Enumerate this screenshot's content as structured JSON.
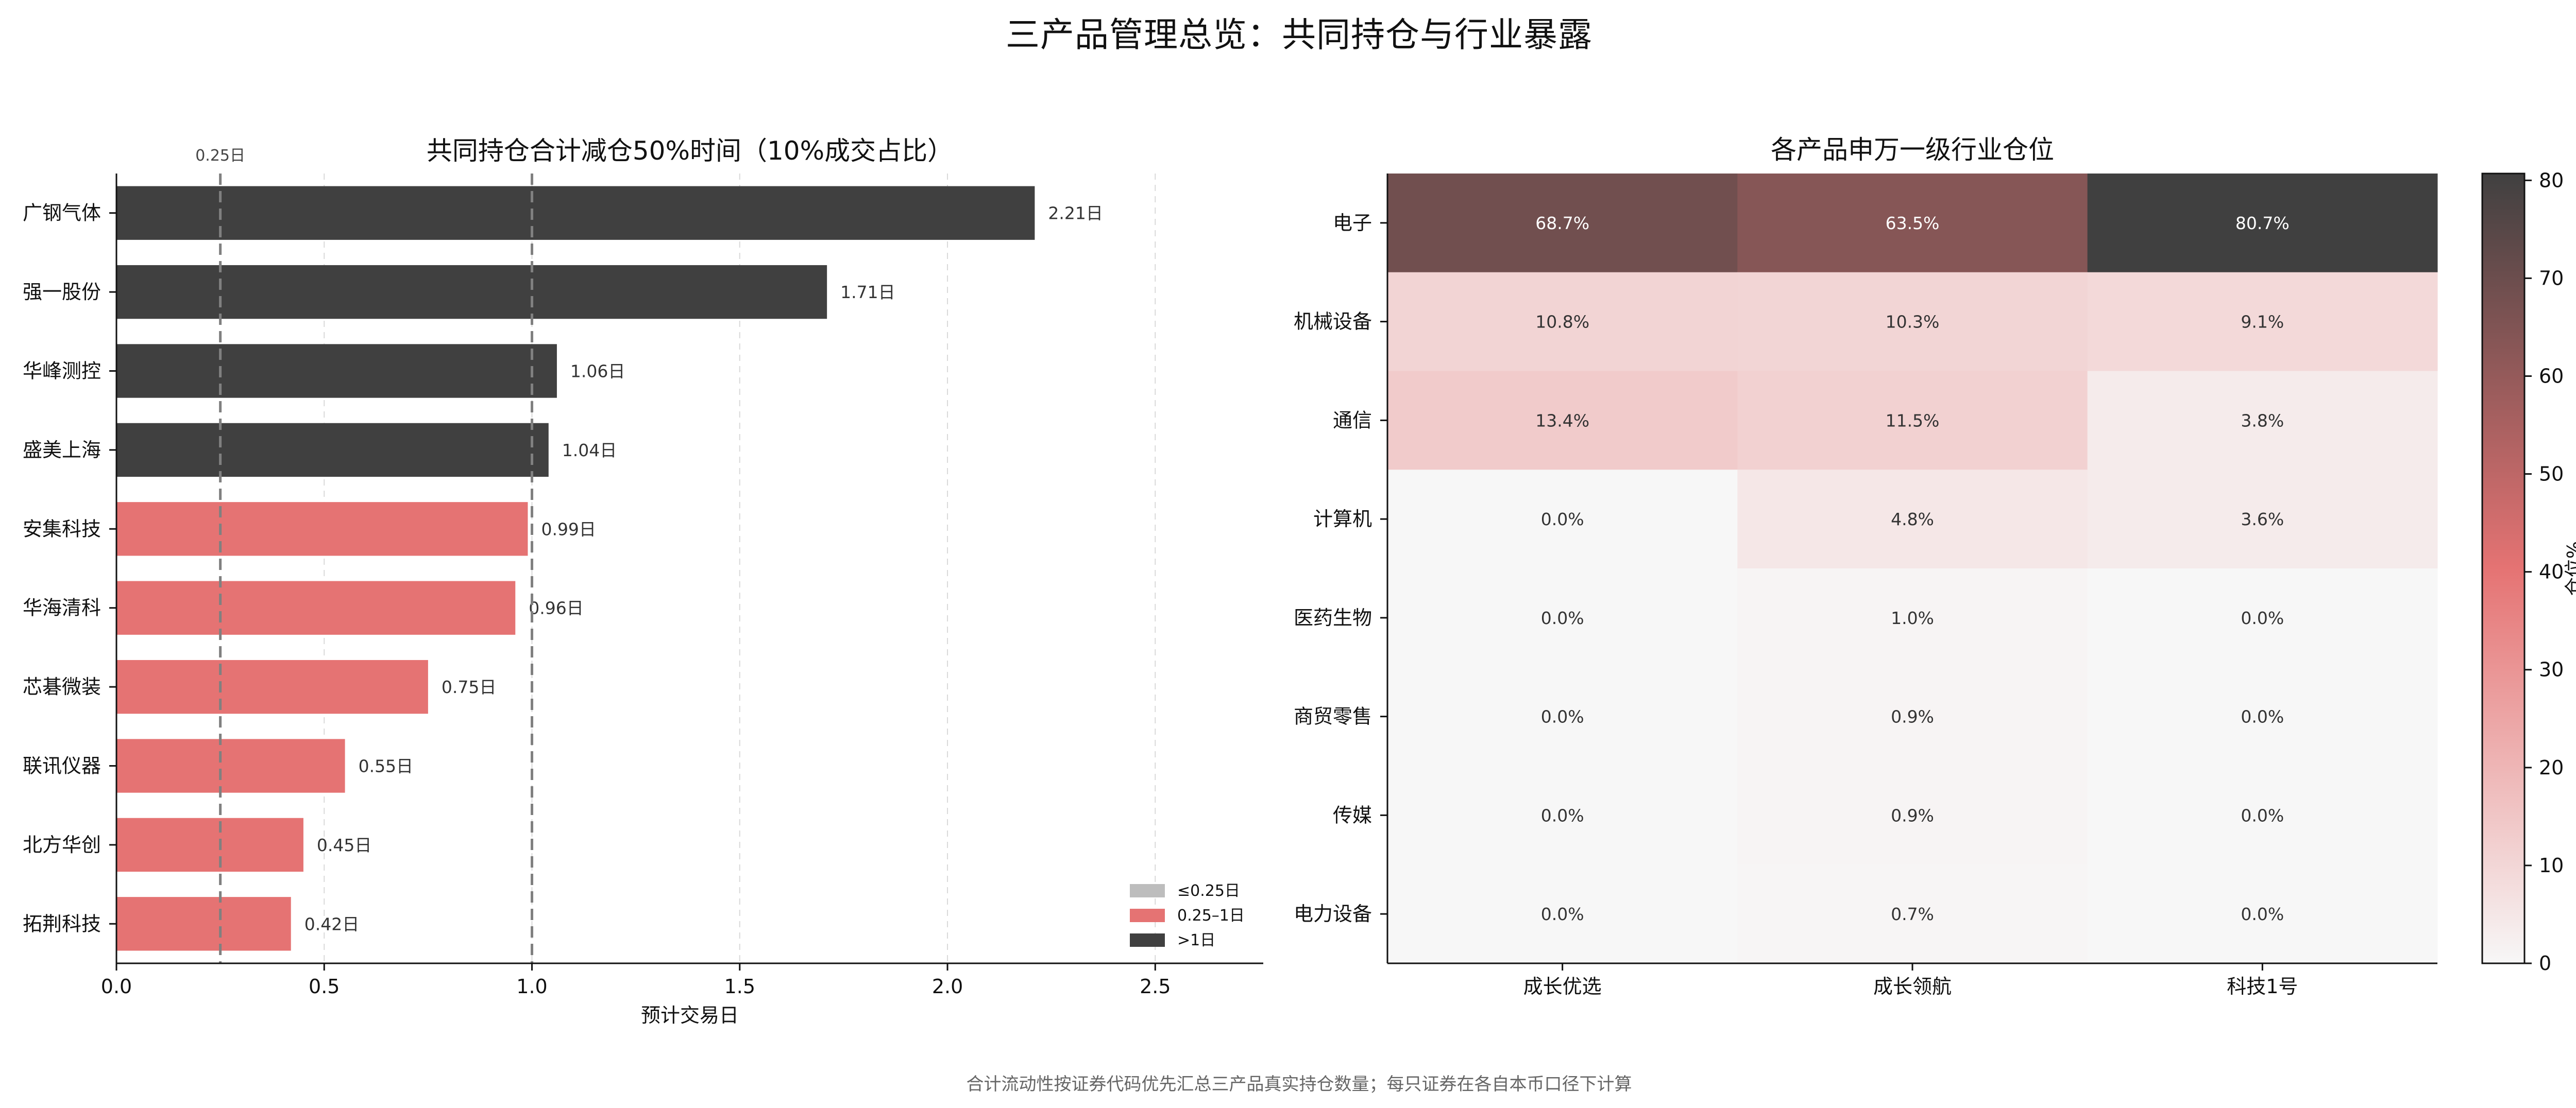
{
  "figure": {
    "title": "三产品管理总览：共同持仓与行业暴露",
    "footnote": "合计流动性按证券代码优先汇总三产品真实持仓数量；每只证券在各自本币口径下计算"
  },
  "chart_data": [
    {
      "type": "bar",
      "orientation": "horizontal",
      "title": "共同持仓合计减仓50%时间（10%成交占比）",
      "xlabel": "预计交易日",
      "ylabel": "",
      "xlim": [
        0,
        2.76
      ],
      "xticks": [
        "0.0",
        "0.5",
        "1.0",
        "1.5",
        "2.0",
        "2.5"
      ],
      "xtick_values": [
        0,
        0.5,
        1.0,
        1.5,
        2.0,
        2.5
      ],
      "grid": "vertical-dashed",
      "categories": [
        "广钢气体",
        "强一股份",
        "华峰测控",
        "盛美上海",
        "安集科技",
        "华海清科",
        "芯碁微装",
        "联讯仪器",
        "北方华创",
        "拓荆科技"
      ],
      "values": [
        2.21,
        1.71,
        1.06,
        1.04,
        0.99,
        0.96,
        0.75,
        0.55,
        0.45,
        0.42
      ],
      "value_labels": [
        "2.21日",
        "1.71日",
        "1.06日",
        "1.04日",
        "0.99日",
        "0.96日",
        "0.75日",
        "0.55日",
        "0.45日",
        "0.42日"
      ],
      "bar_groups": [
        "gt1",
        "gt1",
        "gt1",
        "gt1",
        "mid",
        "mid",
        "mid",
        "mid",
        "mid",
        "mid"
      ],
      "reference_lines": [
        {
          "x": 0.25,
          "label": "0.25日"
        },
        {
          "x": 1.0,
          "label": ""
        }
      ],
      "legend": {
        "placement": "lower-right",
        "entries": [
          {
            "key": "le",
            "label": "≤0.25日",
            "color": "#bdbdbd"
          },
          {
            "key": "mid",
            "label": "0.25–1日",
            "color": "#e57373"
          },
          {
            "key": "gt1",
            "label": ">1日",
            "color": "#404040"
          }
        ]
      }
    },
    {
      "type": "heatmap",
      "title": "各产品申万一级行业仓位",
      "xlabel": "",
      "ylabel": "",
      "columns": [
        "成长优选",
        "成长领航",
        "科技1号"
      ],
      "rows": [
        "电子",
        "机械设备",
        "通信",
        "计算机",
        "医药生物",
        "商贸零售",
        "传媒",
        "电力设备"
      ],
      "values": [
        [
          68.7,
          63.5,
          80.7
        ],
        [
          10.8,
          10.3,
          9.1
        ],
        [
          13.4,
          11.5,
          3.8
        ],
        [
          0.0,
          4.8,
          3.6
        ],
        [
          0.0,
          1.0,
          0.0
        ],
        [
          0.0,
          0.9,
          0.0
        ],
        [
          0.0,
          0.9,
          0.0
        ],
        [
          0.0,
          0.7,
          0.0
        ]
      ],
      "cell_labels": [
        [
          "68.7%",
          "63.5%",
          "80.7%"
        ],
        [
          "10.8%",
          "10.3%",
          "9.1%"
        ],
        [
          "13.4%",
          "11.5%",
          "3.8%"
        ],
        [
          "0.0%",
          "4.8%",
          "3.6%"
        ],
        [
          "0.0%",
          "1.0%",
          "0.0%"
        ],
        [
          "0.0%",
          "0.9%",
          "0.0%"
        ],
        [
          "0.0%",
          "0.9%",
          "0.0%"
        ],
        [
          "0.0%",
          "0.7%",
          "0.0%"
        ]
      ],
      "colorbar": {
        "label": "仓位%",
        "vmin": 0,
        "vmax": 80.7,
        "ticks": [
          "0",
          "10",
          "20",
          "30",
          "40",
          "50",
          "60",
          "70",
          "80"
        ],
        "tick_values": [
          0,
          10,
          20,
          30,
          40,
          50,
          60,
          70,
          80
        ],
        "colors": [
          "#f7f7f7",
          "#e57373",
          "#404040"
        ]
      }
    }
  ]
}
